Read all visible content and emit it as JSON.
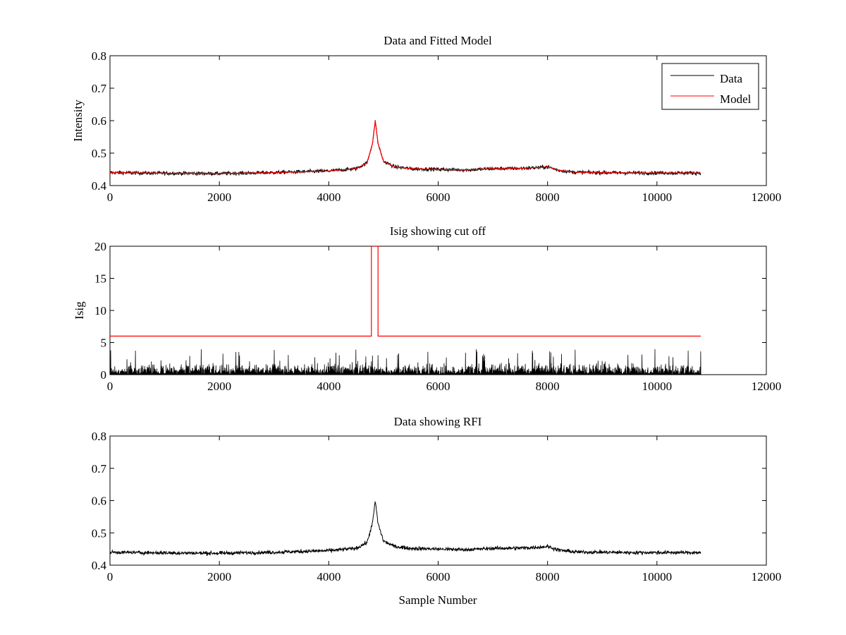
{
  "chart_data": [
    {
      "type": "line",
      "title": "Data and Fitted Model",
      "xlabel": "",
      "ylabel": "Intensity",
      "xlim": [
        0,
        12000
      ],
      "ylim": [
        0.4,
        0.8
      ],
      "xticks": [
        "0",
        "2000",
        "4000",
        "6000",
        "8000",
        "10000",
        "12000"
      ],
      "yticks": [
        "0.4",
        "0.5",
        "0.6",
        "0.7",
        "0.8"
      ],
      "legend": "top-right",
      "series": [
        {
          "name": "Data",
          "color": "#000000",
          "x": [
            0,
            1000,
            2000,
            3000,
            4000,
            4500,
            4700,
            4800,
            4850,
            4900,
            5000,
            5200,
            5500,
            6000,
            6500,
            7000,
            7500,
            7800,
            8000,
            8200,
            8500,
            9000,
            9500,
            10000,
            10800
          ],
          "y": [
            0.44,
            0.438,
            0.437,
            0.44,
            0.445,
            0.452,
            0.47,
            0.53,
            0.6,
            0.53,
            0.475,
            0.458,
            0.452,
            0.45,
            0.448,
            0.452,
            0.453,
            0.455,
            0.458,
            0.447,
            0.441,
            0.44,
            0.439,
            0.439,
            0.439
          ],
          "noise": 0.004
        },
        {
          "name": "Model",
          "color": "#ff0000",
          "x": [
            0,
            1000,
            2000,
            3000,
            4000,
            4500,
            4700,
            4800,
            4850,
            4900,
            5000,
            5200,
            5500,
            6000,
            6500,
            7000,
            7500,
            7800,
            8000,
            8200,
            8500,
            9000,
            9500,
            10000,
            10800
          ],
          "y": [
            0.44,
            0.438,
            0.437,
            0.44,
            0.445,
            0.452,
            0.47,
            0.53,
            0.6,
            0.53,
            0.475,
            0.458,
            0.452,
            0.45,
            0.448,
            0.452,
            0.453,
            0.455,
            0.458,
            0.447,
            0.441,
            0.44,
            0.439,
            0.439,
            0.439
          ]
        }
      ]
    },
    {
      "type": "line",
      "title": "Isig showing cut off",
      "xlabel": "",
      "ylabel": "Isig",
      "xlim": [
        0,
        12000
      ],
      "ylim": [
        0,
        20
      ],
      "xticks": [
        "0",
        "2000",
        "4000",
        "6000",
        "8000",
        "10000",
        "12000"
      ],
      "yticks": [
        "0",
        "5",
        "10",
        "15",
        "20"
      ],
      "series": [
        {
          "color": "#ff0000",
          "x": [
            0,
            4780,
            4780,
            4900,
            4900,
            10800
          ],
          "y": [
            6,
            6,
            20,
            20,
            6,
            6
          ]
        },
        {
          "color": "#000000",
          "x_range": [
            0,
            10800
          ],
          "y_range": [
            0,
            4
          ],
          "typical_max": 2.5,
          "style": "noise"
        }
      ]
    },
    {
      "type": "line",
      "title": "Data showing RFI",
      "xlabel": "Sample Number",
      "ylabel": "",
      "xlim": [
        0,
        12000
      ],
      "ylim": [
        0.4,
        0.8
      ],
      "xticks": [
        "0",
        "2000",
        "4000",
        "6000",
        "8000",
        "10000",
        "12000"
      ],
      "yticks": [
        "0.4",
        "0.5",
        "0.6",
        "0.7",
        "0.8"
      ],
      "series": [
        {
          "color": "#000000",
          "x": [
            0,
            1000,
            2000,
            3000,
            4000,
            4500,
            4700,
            4800,
            4850,
            4900,
            5000,
            5200,
            5500,
            6000,
            6500,
            7000,
            7500,
            7800,
            8000,
            8200,
            8500,
            9000,
            9500,
            10000,
            10800
          ],
          "y": [
            0.44,
            0.438,
            0.437,
            0.44,
            0.445,
            0.452,
            0.47,
            0.53,
            0.6,
            0.53,
            0.475,
            0.458,
            0.452,
            0.45,
            0.448,
            0.452,
            0.453,
            0.455,
            0.458,
            0.447,
            0.441,
            0.44,
            0.439,
            0.439,
            0.439
          ],
          "noise": 0.004
        }
      ]
    }
  ]
}
